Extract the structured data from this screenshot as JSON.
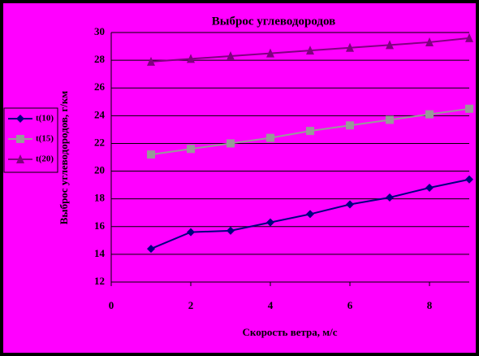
{
  "chart_data": {
    "type": "line",
    "title": "Выброс углеводородов",
    "x_label": "Скорость ветра, м/с",
    "y_label": "Выброс углеводородов, г/км",
    "x": [
      1,
      2,
      3,
      4,
      5,
      6,
      7,
      8,
      9
    ],
    "series": [
      {
        "name": "t(10)",
        "color": "#000080",
        "marker": "diamond",
        "values": [
          14.4,
          15.6,
          15.7,
          16.3,
          16.9,
          17.6,
          18.1,
          18.8,
          19.4
        ]
      },
      {
        "name": "t(15)",
        "color": "#999999",
        "marker": "square",
        "values": [
          21.2,
          21.6,
          22.0,
          22.4,
          22.9,
          23.3,
          23.7,
          24.1,
          24.5
        ]
      },
      {
        "name": "t(20)",
        "color": "#800080",
        "marker": "triangle",
        "values": [
          27.9,
          28.1,
          28.3,
          28.5,
          28.7,
          28.9,
          29.1,
          29.3,
          29.6
        ]
      }
    ],
    "xlim": [
      0,
      9
    ],
    "xticks": [
      0,
      2,
      4,
      6,
      8
    ],
    "ylim": [
      12,
      30
    ],
    "yticks": [
      12,
      14,
      16,
      18,
      20,
      22,
      24,
      26,
      28,
      30
    ],
    "grid": true,
    "legend": "left",
    "background": "#ff00ff"
  }
}
